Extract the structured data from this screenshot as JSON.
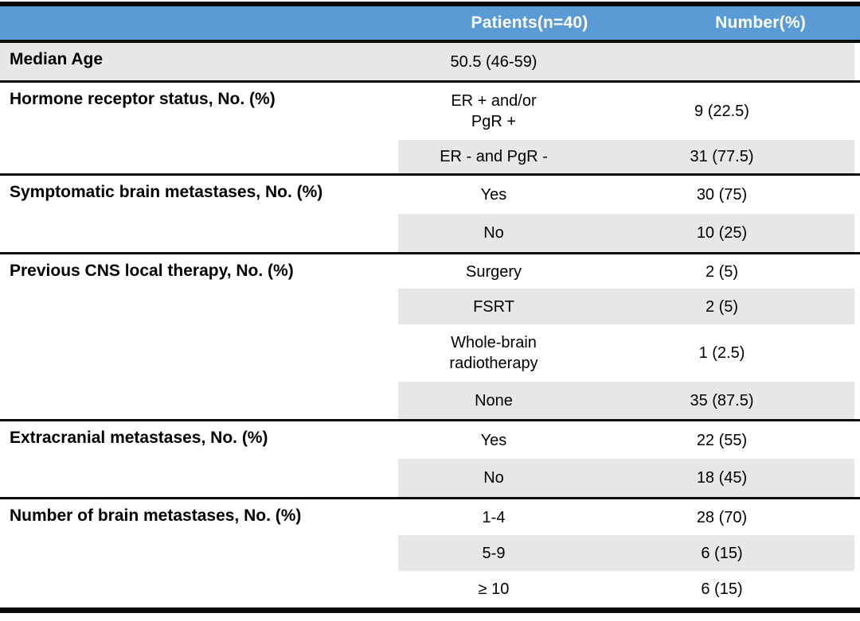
{
  "colors": {
    "header_bg": "#5b9bd5",
    "header_text": "#ffffff",
    "band_bg": "#e8e7e7",
    "border": "#0b0b0b"
  },
  "header": {
    "patients": "Patients(n=40)",
    "number": "Number(%)"
  },
  "sections": [
    {
      "label": "Median Age",
      "rows": [
        {
          "value": "50.5 (46-59)",
          "number": ""
        }
      ]
    },
    {
      "label": "Hormone receptor status, No. (%)",
      "rows": [
        {
          "value": "ER + and/or\nPgR +",
          "number": "9 (22.5)"
        },
        {
          "value": "ER - and PgR -",
          "number": "31 (77.5)"
        }
      ]
    },
    {
      "label": "Symptomatic brain metastases, No. (%)",
      "rows": [
        {
          "value": "Yes",
          "number": "30 (75)"
        },
        {
          "value": "No",
          "number": "10 (25)"
        }
      ]
    },
    {
      "label": "Previous CNS local therapy, No. (%)",
      "rows": [
        {
          "value": "Surgery",
          "number": "2 (5)"
        },
        {
          "value": "FSRT",
          "number": "2 (5)"
        },
        {
          "value": "Whole-brain\nradiotherapy",
          "number": "1 (2.5)"
        },
        {
          "value": "None",
          "number": "35 (87.5)"
        }
      ]
    },
    {
      "label": "Extracranial metastases, No. (%)",
      "rows": [
        {
          "value": "Yes",
          "number": "22 (55)"
        },
        {
          "value": "No",
          "number": "18 (45)"
        }
      ]
    },
    {
      "label": "Number of brain metastases, No. (%)",
      "rows": [
        {
          "value": "1-4",
          "number": "28 (70)"
        },
        {
          "value": "5-9",
          "number": "6 (15)"
        },
        {
          "value": "≥ 10",
          "number": "6 (15)"
        }
      ]
    }
  ]
}
